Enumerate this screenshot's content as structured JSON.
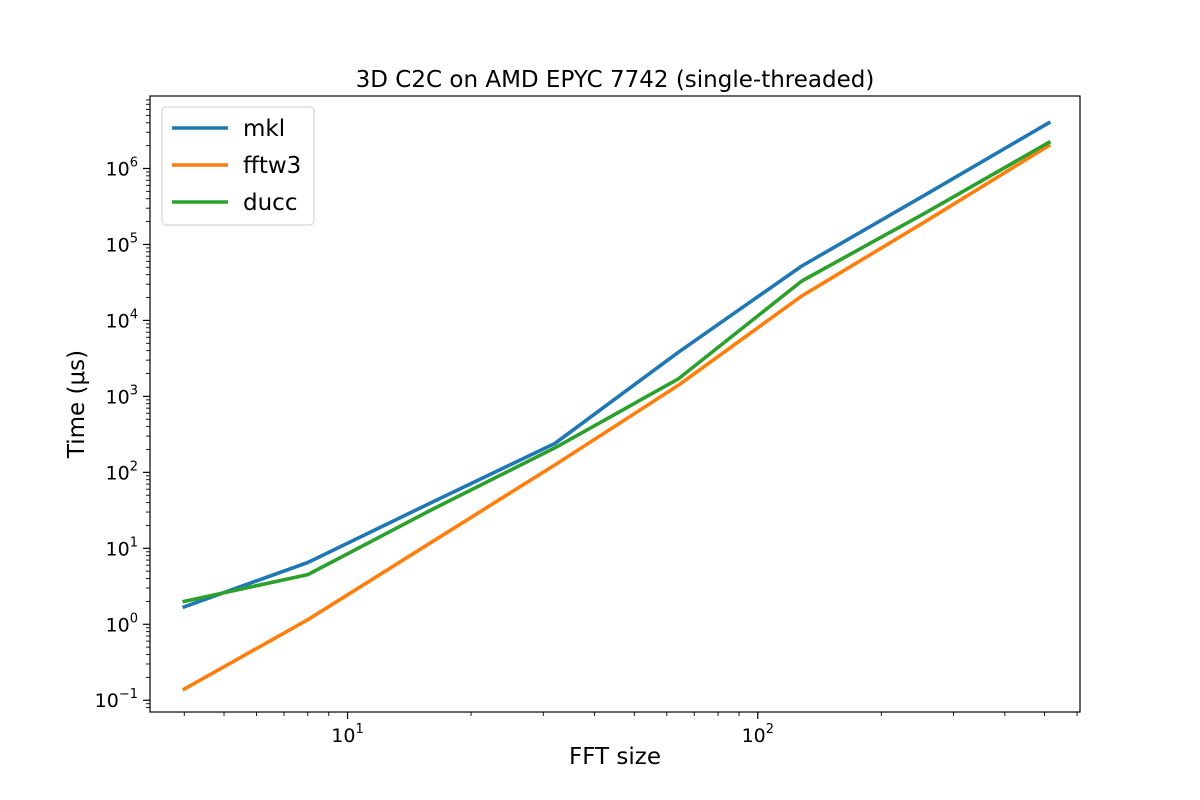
{
  "chart_data": {
    "type": "line",
    "title": "3D C2C on AMD EPYC 7742 (single-threaded)",
    "xlabel": "FFT size",
    "ylabel": "Time (μs)",
    "xscale": "log",
    "yscale": "log",
    "xlim": [
      3.3,
      610
    ],
    "ylim": [
      0.07,
      9000000
    ],
    "grid": false,
    "legend_position": "upper-left",
    "x": [
      4,
      8,
      16,
      32,
      64,
      128,
      256,
      512
    ],
    "series": [
      {
        "name": "mkl",
        "color": "#1f77b4",
        "values": [
          1.7,
          6.5,
          40,
          240,
          3800,
          52000,
          450000,
          4000000
        ]
      },
      {
        "name": "fftw3",
        "color": "#ff7f0e",
        "values": [
          0.14,
          1.15,
          12,
          125,
          1400,
          21000,
          200000,
          2000000
        ]
      },
      {
        "name": "ducc",
        "color": "#2ca02c",
        "values": [
          2.0,
          4.5,
          32,
          210,
          1700,
          33000,
          260000,
          2200000
        ]
      }
    ],
    "x_ticks": [
      {
        "value": 10,
        "base": "10",
        "exp": "1"
      },
      {
        "value": 100,
        "base": "10",
        "exp": "2"
      }
    ],
    "y_ticks": [
      {
        "value": 0.1,
        "base": "10",
        "exp": "−1"
      },
      {
        "value": 1,
        "base": "10",
        "exp": "0"
      },
      {
        "value": 10,
        "base": "10",
        "exp": "1"
      },
      {
        "value": 100,
        "base": "10",
        "exp": "2"
      },
      {
        "value": 1000,
        "base": "10",
        "exp": "3"
      },
      {
        "value": 10000,
        "base": "10",
        "exp": "4"
      },
      {
        "value": 100000,
        "base": "10",
        "exp": "5"
      },
      {
        "value": 1000000,
        "base": "10",
        "exp": "6"
      }
    ]
  }
}
